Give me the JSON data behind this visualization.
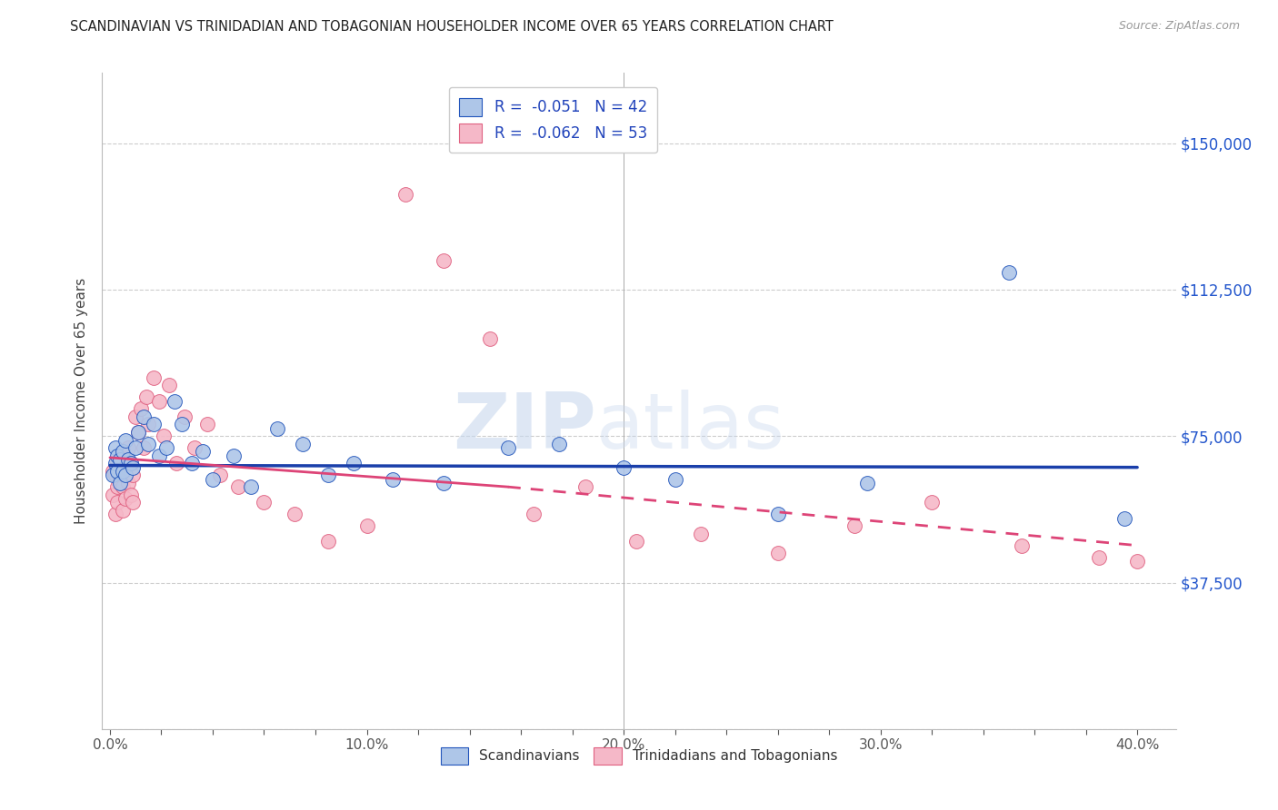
{
  "title": "SCANDINAVIAN VS TRINIDADIAN AND TOBAGONIAN HOUSEHOLDER INCOME OVER 65 YEARS CORRELATION CHART",
  "source": "Source: ZipAtlas.com",
  "ylabel": "Householder Income Over 65 years",
  "xlabel_ticks": [
    "0.0%",
    "",
    "",
    "",
    "",
    "10.0%",
    "",
    "",
    "",
    "",
    "20.0%",
    "",
    "",
    "",
    "",
    "30.0%",
    "",
    "",
    "",
    "",
    "40.0%"
  ],
  "xlabel_vals": [
    0.0,
    0.02,
    0.04,
    0.06,
    0.08,
    0.1,
    0.12,
    0.14,
    0.16,
    0.18,
    0.2,
    0.22,
    0.24,
    0.26,
    0.28,
    0.3,
    0.32,
    0.34,
    0.36,
    0.38,
    0.4
  ],
  "yticks": [
    0,
    37500,
    75000,
    112500,
    150000
  ],
  "ytick_labels": [
    "",
    "$37,500",
    "$75,000",
    "$112,500",
    "$150,000"
  ],
  "ylim": [
    0,
    168000
  ],
  "xlim": [
    -0.003,
    0.415
  ],
  "legend_r_blue": "R =  -0.051",
  "legend_n_blue": "N = 42",
  "legend_r_pink": "R =  -0.062",
  "legend_n_pink": "N = 53",
  "label_blue": "Scandinavians",
  "label_pink": "Trinidadians and Tobagonians",
  "color_blue": "#aec6e8",
  "color_pink": "#f5b8c8",
  "line_blue": "#2255bb",
  "line_pink": "#e06080",
  "trend_blue": "#1a3faa",
  "trend_pink": "#dd4477",
  "watermark_zip": "ZIP",
  "watermark_atlas": "atlas",
  "blue_x": [
    0.001,
    0.002,
    0.002,
    0.003,
    0.003,
    0.004,
    0.004,
    0.005,
    0.005,
    0.006,
    0.006,
    0.007,
    0.008,
    0.009,
    0.01,
    0.011,
    0.013,
    0.015,
    0.017,
    0.019,
    0.022,
    0.025,
    0.028,
    0.032,
    0.036,
    0.04,
    0.048,
    0.055,
    0.065,
    0.075,
    0.085,
    0.095,
    0.11,
    0.13,
    0.155,
    0.175,
    0.2,
    0.22,
    0.26,
    0.295,
    0.35,
    0.395
  ],
  "blue_y": [
    65000,
    68000,
    72000,
    66000,
    70000,
    69000,
    63000,
    71000,
    66000,
    65000,
    74000,
    69000,
    68000,
    67000,
    72000,
    76000,
    80000,
    73000,
    78000,
    70000,
    72000,
    84000,
    78000,
    68000,
    71000,
    64000,
    70000,
    62000,
    77000,
    73000,
    65000,
    68000,
    64000,
    63000,
    72000,
    73000,
    67000,
    64000,
    55000,
    63000,
    117000,
    54000
  ],
  "pink_x": [
    0.001,
    0.001,
    0.002,
    0.002,
    0.003,
    0.003,
    0.003,
    0.004,
    0.004,
    0.005,
    0.005,
    0.005,
    0.006,
    0.006,
    0.007,
    0.007,
    0.008,
    0.008,
    0.009,
    0.009,
    0.01,
    0.011,
    0.012,
    0.013,
    0.014,
    0.015,
    0.017,
    0.019,
    0.021,
    0.023,
    0.026,
    0.029,
    0.033,
    0.038,
    0.043,
    0.05,
    0.06,
    0.072,
    0.085,
    0.1,
    0.115,
    0.13,
    0.148,
    0.165,
    0.185,
    0.205,
    0.23,
    0.26,
    0.29,
    0.32,
    0.355,
    0.385,
    0.4
  ],
  "pink_y": [
    66000,
    60000,
    65000,
    55000,
    68000,
    62000,
    58000,
    64000,
    70000,
    67000,
    62000,
    56000,
    65000,
    59000,
    72000,
    63000,
    68000,
    60000,
    65000,
    58000,
    80000,
    76000,
    82000,
    72000,
    85000,
    78000,
    90000,
    84000,
    75000,
    88000,
    68000,
    80000,
    72000,
    78000,
    65000,
    62000,
    58000,
    55000,
    48000,
    52000,
    137000,
    120000,
    100000,
    55000,
    62000,
    48000,
    50000,
    45000,
    52000,
    58000,
    47000,
    44000,
    43000
  ],
  "blue_trend_x0": 0.0,
  "blue_trend_x1": 0.4,
  "blue_trend_y0": 67500,
  "blue_trend_y1": 67000,
  "pink_trend_solid_x0": 0.0,
  "pink_trend_solid_x1": 0.155,
  "pink_trend_y0": 69500,
  "pink_trend_y1": 62000,
  "pink_trend_dash_x0": 0.155,
  "pink_trend_dash_x1": 0.4,
  "pink_trend_dash_y0": 62000,
  "pink_trend_dash_y1": 47000
}
